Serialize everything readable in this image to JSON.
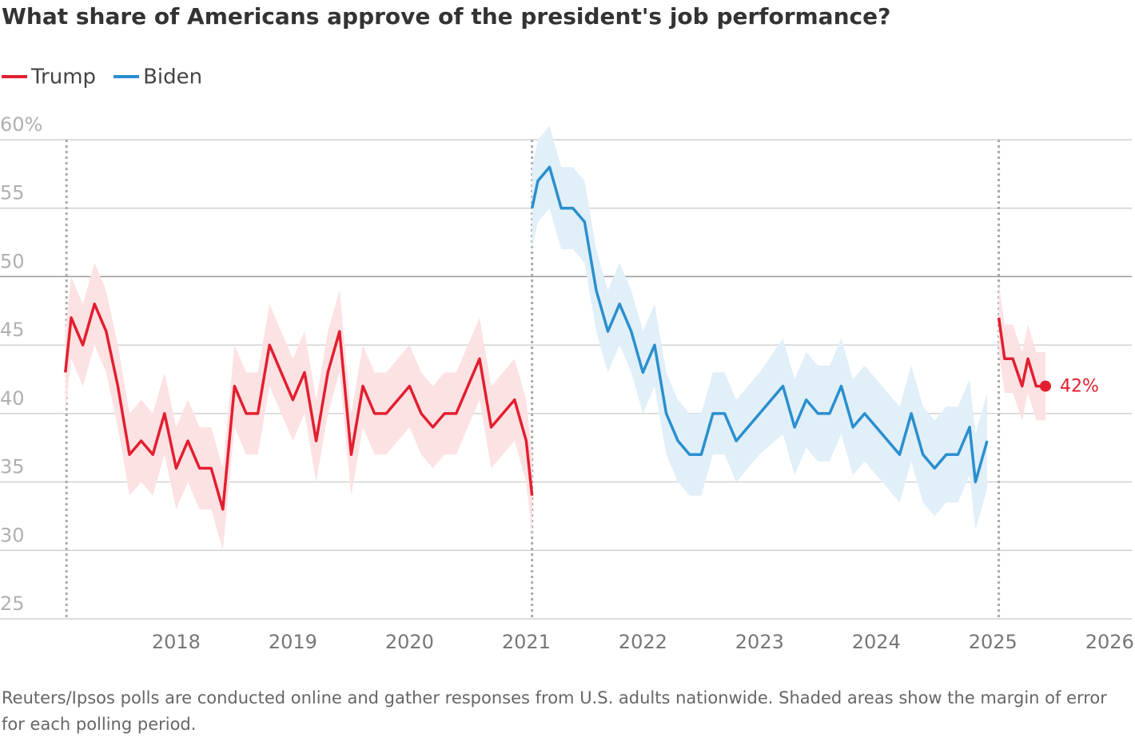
{
  "chart_data": {
    "type": "line",
    "title": "What share of Americans approve of the president's job performance?",
    "note": "Reuters/Ipsos polls are conducted online and gather responses from U.S. adults nationwide. Shaded areas show the margin of error for each polling period.",
    "xlim": [
      2016.49,
      2026.19
    ],
    "xticks": [
      2018,
      2019,
      2020,
      2021,
      2022,
      2023,
      2024,
      2025,
      2026
    ],
    "ylim": [
      25,
      60
    ],
    "yticks": [
      25,
      30,
      35,
      40,
      45,
      50,
      55,
      {
        "value": 60,
        "label": "60%"
      }
    ],
    "grid": true,
    "markers": [
      2017.06,
      2021.05,
      2025.05
    ],
    "series": [
      {
        "name": "Trump",
        "color": "#e31f2f",
        "band_color": "#fde2e4",
        "x": [
          2017.05,
          2017.1,
          2017.2,
          2017.3,
          2017.4,
          2017.5,
          2017.6,
          2017.7,
          2017.8,
          2017.9,
          2018.0,
          2018.1,
          2018.2,
          2018.3,
          2018.4,
          2018.5,
          2018.6,
          2018.7,
          2018.8,
          2018.9,
          2019.0,
          2019.1,
          2019.2,
          2019.3,
          2019.4,
          2019.5,
          2019.6,
          2019.7,
          2019.8,
          2019.9,
          2020.0,
          2020.1,
          2020.2,
          2020.3,
          2020.4,
          2020.5,
          2020.6,
          2020.7,
          2020.8,
          2020.9,
          2021.0,
          2021.05,
          2023.0,
          2025.05,
          2025.1,
          2025.17,
          2025.25,
          2025.3,
          2025.37,
          2025.45
        ],
        "values": [
          43,
          47,
          45,
          48,
          46,
          42,
          37,
          38,
          37,
          40,
          36,
          38,
          36,
          36,
          33,
          42,
          40,
          40,
          45,
          43,
          41,
          43,
          38,
          43,
          46,
          37,
          42,
          40,
          40,
          41,
          42,
          40,
          39,
          40,
          40,
          42,
          44,
          39,
          40,
          41,
          38,
          34,
          null,
          47,
          44,
          44,
          42,
          44,
          42,
          42
        ],
        "margin": [
          3,
          3,
          3,
          3,
          3,
          3,
          3,
          3,
          3,
          3,
          3,
          3,
          3,
          3,
          3,
          3,
          3,
          3,
          3,
          3,
          3,
          3,
          3,
          3,
          3,
          3,
          3,
          3,
          3,
          3,
          3,
          3,
          3,
          3,
          3,
          3,
          3,
          3,
          3,
          3,
          3,
          3,
          null,
          2.5,
          2.5,
          2.5,
          2.5,
          2.5,
          2.5,
          2.5
        ],
        "end_label": "42%"
      },
      {
        "name": "Biden",
        "color": "#2a8fce",
        "band_color": "#e1eff9",
        "x": [
          2021.05,
          2021.1,
          2021.2,
          2021.3,
          2021.4,
          2021.5,
          2021.6,
          2021.7,
          2021.8,
          2021.9,
          2022.0,
          2022.1,
          2022.2,
          2022.3,
          2022.4,
          2022.5,
          2022.6,
          2022.7,
          2022.8,
          2022.9,
          2023.0,
          2023.2,
          2023.3,
          2023.4,
          2023.5,
          2023.6,
          2023.7,
          2023.8,
          2023.9,
          2024.0,
          2024.1,
          2024.2,
          2024.3,
          2024.4,
          2024.5,
          2024.6,
          2024.7,
          2024.8,
          2024.85,
          2024.95
        ],
        "values": [
          55,
          57,
          58,
          55,
          55,
          54,
          49,
          46,
          48,
          46,
          43,
          45,
          40,
          38,
          37,
          37,
          40,
          40,
          38,
          39,
          40,
          42,
          39,
          41,
          40,
          40,
          42,
          39,
          40,
          39,
          38,
          37,
          40,
          37,
          36,
          37,
          37,
          39,
          35,
          38
        ],
        "margin": [
          3,
          3,
          3,
          3,
          3,
          3,
          3,
          3,
          3,
          3,
          3,
          3,
          3,
          3,
          3,
          3,
          3,
          3,
          3,
          3,
          3,
          3.5,
          3.5,
          3.5,
          3.5,
          3.5,
          3.5,
          3.5,
          3.5,
          3.5,
          3.5,
          3.5,
          3.5,
          3.5,
          3.5,
          3.5,
          3.5,
          3.5,
          3.5,
          3.5
        ]
      }
    ]
  }
}
